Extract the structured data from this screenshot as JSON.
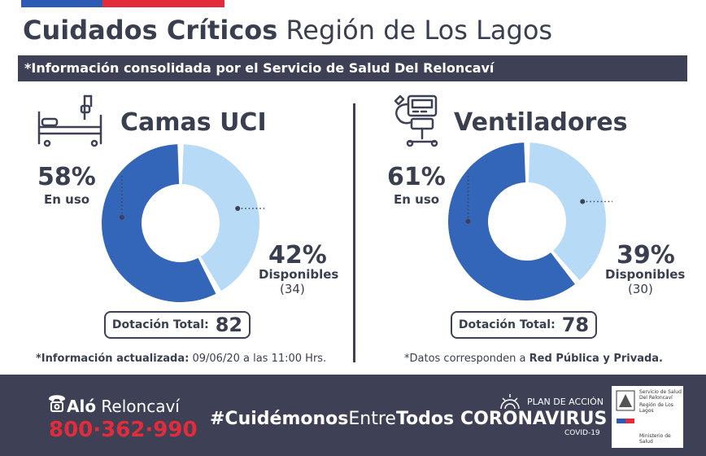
{
  "header": {
    "title_bold": "Cuidados Críticos",
    "title_light": "Región de Los Lagos",
    "banner": "*Información consolidada por el Servicio de Salud Del Reloncaví"
  },
  "colors": {
    "in_use": "#3366b8",
    "available": "#b7dbf7",
    "dark": "#3e4155",
    "accent_red": "#e22c3b"
  },
  "chart_data": [
    {
      "type": "pie",
      "title": "Camas UCI",
      "series": [
        {
          "name": "En uso",
          "value": 58,
          "pct_label": "58%"
        },
        {
          "name": "Disponibles",
          "value": 42,
          "pct_label": "42%",
          "count_label": "(34)"
        }
      ],
      "total_label": "Dotación Total:",
      "total_value": "82"
    },
    {
      "type": "pie",
      "title": "Ventiladores",
      "series": [
        {
          "name": "En uso",
          "value": 61,
          "pct_label": "61%"
        },
        {
          "name": "Disponibles",
          "value": 39,
          "pct_label": "39%",
          "count_label": "(30)"
        }
      ],
      "total_label": "Dotación Total:",
      "total_value": "78"
    }
  ],
  "notes": {
    "left_bold": "*Información actualizada:",
    "left_rest": " 09/06/20 a las 11:00 Hrs.",
    "right_pre": "*Datos corresponden a ",
    "right_bold": "Red Pública y Privada."
  },
  "footer": {
    "phone_bold": "Aló",
    "phone_name": " Reloncaví",
    "phone_number": "800·362·990",
    "hashtag_pre": "#Cuidémonos",
    "hashtag_mid": "Entre",
    "hashtag_end": "Todos",
    "plan": "PLAN DE ACCIÓN",
    "campaign": "CORONAVIRUS",
    "covid": "COVID-19",
    "seal_top": "Servicio de Salud Del Reloncaví",
    "seal_region": "Región de Los Lagos",
    "seal_bottom": "Ministerio de Salud"
  },
  "icons": [
    "hospital-bed-icon",
    "ventilator-icon",
    "phone-icon",
    "virus-icon",
    "government-seal-icon"
  ]
}
